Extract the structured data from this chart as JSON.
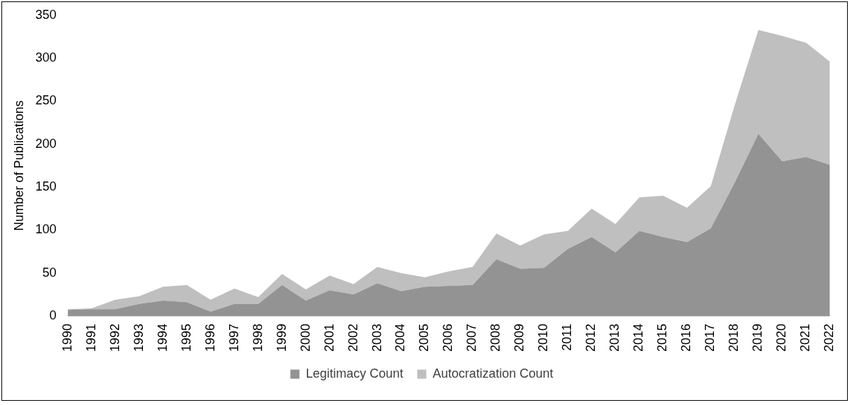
{
  "chart_data": {
    "type": "area",
    "stacked": true,
    "ylabel": "Number of Publications",
    "categories": [
      "1990",
      "1991",
      "1992",
      "1993",
      "1994",
      "1995",
      "1996",
      "1997",
      "1998",
      "1999",
      "2000",
      "2001",
      "2002",
      "2003",
      "2004",
      "2005",
      "2006",
      "2007",
      "2008",
      "2009",
      "2010",
      "2011",
      "2012",
      "2013",
      "2014",
      "2015",
      "2016",
      "2017",
      "2018",
      "2019",
      "2020",
      "2021",
      "2022"
    ],
    "series": [
      {
        "name": "Legitimacy Count",
        "color": "#939393",
        "values": [
          7,
          8,
          8,
          14,
          18,
          16,
          5,
          14,
          14,
          36,
          18,
          30,
          25,
          38,
          29,
          34,
          35,
          36,
          66,
          55,
          56,
          78,
          92,
          74,
          99,
          92,
          86,
          102,
          155,
          212,
          180,
          185,
          176
        ]
      },
      {
        "name": "Autocratization Count",
        "color": "#bfbfbf",
        "values": [
          1,
          1,
          11,
          9,
          16,
          20,
          14,
          18,
          8,
          13,
          13,
          17,
          12,
          19,
          21,
          11,
          17,
          21,
          30,
          27,
          39,
          21,
          33,
          33,
          39,
          48,
          40,
          49,
          90,
          121,
          146,
          133,
          120
        ]
      }
    ],
    "ylim": [
      0,
      350
    ],
    "yticks": [
      0,
      50,
      100,
      150,
      200,
      250,
      300,
      350
    ],
    "grid": false,
    "legend": "bottom"
  }
}
